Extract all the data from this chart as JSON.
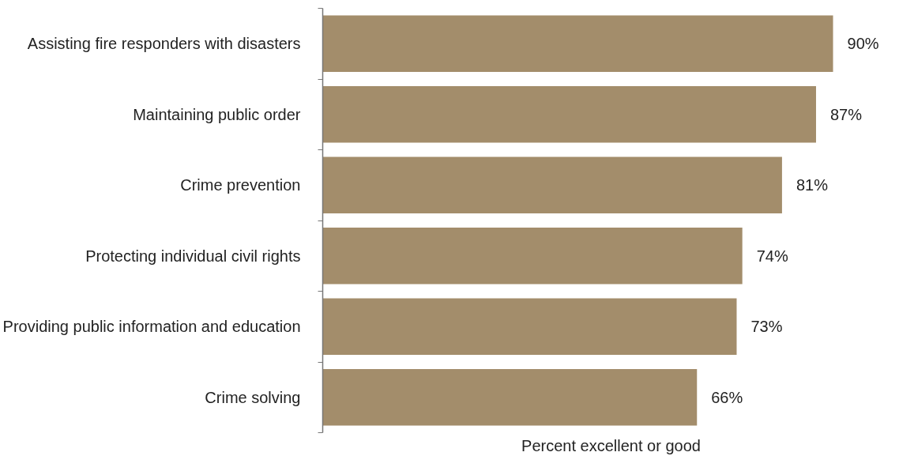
{
  "chart_data": {
    "type": "bar",
    "orientation": "horizontal",
    "xlabel": "Percent excellent or good",
    "categories": [
      "Assisting fire responders with disasters",
      "Maintaining public order",
      "Crime prevention",
      "Protecting individual civil rights",
      "Providing public information and education",
      "Crime solving"
    ],
    "values": [
      90,
      87,
      81,
      74,
      73,
      66
    ],
    "value_labels": [
      "90%",
      "87%",
      "81%",
      "74%",
      "73%",
      "66%"
    ],
    "color": "#a38d6b",
    "grid": false,
    "tick_labels": "y"
  }
}
